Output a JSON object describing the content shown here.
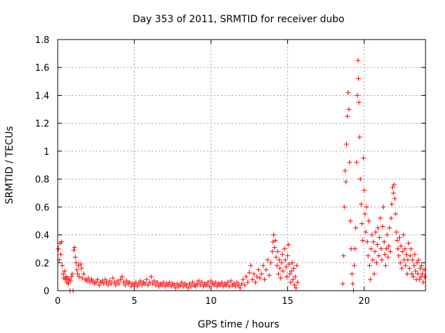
{
  "chart_data": {
    "type": "scatter",
    "title": "Day 353 of 2011, SRMTID for receiver dubo",
    "xlabel": "GPS time / hours",
    "ylabel": "SRMTID / TECUs",
    "xlim": [
      0,
      24
    ],
    "ylim": [
      0,
      1.8
    ],
    "x_ticks": [
      0,
      5,
      10,
      15,
      20
    ],
    "x_tick_labels": [
      "0",
      "5",
      "10",
      "15",
      "20"
    ],
    "y_ticks": [
      0,
      0.2,
      0.4,
      0.6,
      0.8,
      1,
      1.2,
      1.4,
      1.6,
      1.8
    ],
    "y_tick_labels": [
      "0",
      "0.2",
      "0.4",
      "0.6",
      "0.8",
      "1",
      "1.2",
      "1.4",
      "1.6",
      "1.8"
    ],
    "grid": true,
    "marker": "+",
    "color": "#ff0000",
    "series": [
      {
        "name": "SRMTID",
        "points": [
          [
            0.05,
            0.3
          ],
          [
            0.1,
            0.22
          ],
          [
            0.15,
            0.34
          ],
          [
            0.2,
            0.26
          ],
          [
            0.25,
            0.35
          ],
          [
            0.3,
            0.18
          ],
          [
            0.35,
            0.12
          ],
          [
            0.4,
            0.09
          ],
          [
            0.45,
            0.14
          ],
          [
            0.5,
            0.08
          ],
          [
            0.55,
            0.1
          ],
          [
            0.6,
            0.06
          ],
          [
            0.65,
            0.09
          ],
          [
            0.7,
            0.05
          ],
          [
            0.75,
            0.08
          ],
          [
            0.8,
            0.0
          ],
          [
            0.85,
            0.07
          ],
          [
            0.9,
            0.1
          ],
          [
            0.95,
            0.12
          ],
          [
            1.0,
            0.0
          ],
          [
            1.05,
            0.29
          ],
          [
            1.1,
            0.31
          ],
          [
            1.15,
            0.24
          ],
          [
            1.2,
            0.2
          ],
          [
            1.25,
            0.15
          ],
          [
            1.3,
            0.12
          ],
          [
            1.35,
            0.18
          ],
          [
            1.4,
            0.1
          ],
          [
            1.5,
            0.19
          ],
          [
            1.55,
            0.16
          ],
          [
            1.6,
            0.09
          ],
          [
            1.7,
            0.12
          ],
          [
            1.8,
            0.08
          ],
          [
            1.9,
            0.07
          ],
          [
            2.0,
            0.09
          ],
          [
            2.1,
            0.06
          ],
          [
            2.2,
            0.08
          ],
          [
            2.3,
            0.07
          ],
          [
            2.4,
            0.05
          ],
          [
            2.5,
            0.06
          ],
          [
            2.6,
            0.08
          ],
          [
            2.7,
            0.04
          ],
          [
            2.8,
            0.06
          ],
          [
            2.9,
            0.07
          ],
          [
            3.0,
            0.05
          ],
          [
            3.1,
            0.08
          ],
          [
            3.2,
            0.06
          ],
          [
            3.3,
            0.04
          ],
          [
            3.4,
            0.07
          ],
          [
            3.5,
            0.05
          ],
          [
            3.6,
            0.09
          ],
          [
            3.7,
            0.06
          ],
          [
            3.8,
            0.04
          ],
          [
            3.9,
            0.07
          ],
          [
            4.0,
            0.05
          ],
          [
            4.1,
            0.08
          ],
          [
            4.2,
            0.1
          ],
          [
            4.3,
            0.06
          ],
          [
            4.4,
            0.04
          ],
          [
            4.5,
            0.07
          ],
          [
            4.6,
            0.05
          ],
          [
            4.7,
            0.06
          ],
          [
            4.8,
            0.03
          ],
          [
            4.9,
            0.05
          ],
          [
            5.0,
            0.04
          ],
          [
            5.1,
            0.06
          ],
          [
            5.2,
            0.03
          ],
          [
            5.3,
            0.05
          ],
          [
            5.4,
            0.07
          ],
          [
            5.5,
            0.04
          ],
          [
            5.6,
            0.06
          ],
          [
            5.7,
            0.05
          ],
          [
            5.8,
            0.08
          ],
          [
            5.9,
            0.04
          ],
          [
            6.0,
            0.06
          ],
          [
            6.1,
            0.1
          ],
          [
            6.2,
            0.05
          ],
          [
            6.3,
            0.07
          ],
          [
            6.4,
            0.04
          ],
          [
            6.5,
            0.06
          ],
          [
            6.6,
            0.03
          ],
          [
            6.7,
            0.05
          ],
          [
            6.8,
            0.04
          ],
          [
            6.9,
            0.06
          ],
          [
            7.0,
            0.03
          ],
          [
            7.1,
            0.05
          ],
          [
            7.2,
            0.04
          ],
          [
            7.3,
            0.06
          ],
          [
            7.4,
            0.03
          ],
          [
            7.5,
            0.05
          ],
          [
            7.6,
            0.04
          ],
          [
            7.7,
            0.02
          ],
          [
            7.8,
            0.05
          ],
          [
            7.9,
            0.03
          ],
          [
            8.0,
            0.04
          ],
          [
            8.1,
            0.06
          ],
          [
            8.2,
            0.03
          ],
          [
            8.3,
            0.05
          ],
          [
            8.4,
            0.04
          ],
          [
            8.5,
            0.02
          ],
          [
            8.6,
            0.05
          ],
          [
            8.7,
            0.03
          ],
          [
            8.8,
            0.06
          ],
          [
            8.9,
            0.04
          ],
          [
            9.0,
            0.03
          ],
          [
            9.1,
            0.05
          ],
          [
            9.2,
            0.07
          ],
          [
            9.3,
            0.04
          ],
          [
            9.4,
            0.06
          ],
          [
            9.5,
            0.03
          ],
          [
            9.6,
            0.05
          ],
          [
            9.7,
            0.04
          ],
          [
            9.8,
            0.06
          ],
          [
            9.9,
            0.03
          ],
          [
            10.0,
            0.07
          ],
          [
            10.1,
            0.05
          ],
          [
            10.2,
            0.04
          ],
          [
            10.3,
            0.06
          ],
          [
            10.4,
            0.03
          ],
          [
            10.5,
            0.05
          ],
          [
            10.6,
            0.04
          ],
          [
            10.7,
            0.06
          ],
          [
            10.8,
            0.03
          ],
          [
            10.9,
            0.05
          ],
          [
            11.0,
            0.04
          ],
          [
            11.1,
            0.06
          ],
          [
            11.2,
            0.03
          ],
          [
            11.3,
            0.07
          ],
          [
            11.4,
            0.04
          ],
          [
            11.5,
            0.05
          ],
          [
            11.6,
            0.03
          ],
          [
            11.7,
            0.06
          ],
          [
            11.8,
            0.04
          ],
          [
            11.9,
            0.02
          ],
          [
            12.0,
            0.05
          ],
          [
            12.1,
            0.08
          ],
          [
            12.2,
            0.04
          ],
          [
            12.3,
            0.1
          ],
          [
            12.4,
            0.06
          ],
          [
            12.5,
            0.13
          ],
          [
            12.6,
            0.18
          ],
          [
            12.7,
            0.08
          ],
          [
            12.8,
            0.12
          ],
          [
            12.9,
            0.06
          ],
          [
            13.0,
            0.1
          ],
          [
            13.1,
            0.15
          ],
          [
            13.2,
            0.09
          ],
          [
            13.3,
            0.12
          ],
          [
            13.4,
            0.18
          ],
          [
            13.5,
            0.08
          ],
          [
            13.6,
            0.15
          ],
          [
            13.7,
            0.22
          ],
          [
            13.8,
            0.11
          ],
          [
            13.9,
            0.2
          ],
          [
            14.0,
            0.28
          ],
          [
            14.05,
            0.35
          ],
          [
            14.1,
            0.4
          ],
          [
            14.15,
            0.31
          ],
          [
            14.2,
            0.36
          ],
          [
            14.25,
            0.24
          ],
          [
            14.3,
            0.18
          ],
          [
            14.35,
            0.28
          ],
          [
            14.4,
            0.12
          ],
          [
            14.45,
            0.22
          ],
          [
            14.5,
            0.16
          ],
          [
            14.55,
            0.09
          ],
          [
            14.6,
            0.2
          ],
          [
            14.65,
            0.26
          ],
          [
            14.7,
            0.14
          ],
          [
            14.8,
            0.3
          ],
          [
            14.85,
            0.22
          ],
          [
            14.9,
            0.17
          ],
          [
            14.95,
            0.1
          ],
          [
            15.0,
            0.25
          ],
          [
            15.05,
            0.33
          ],
          [
            15.1,
            0.19
          ],
          [
            15.15,
            0.12
          ],
          [
            15.2,
            0.06
          ],
          [
            15.25,
            0.14
          ],
          [
            15.3,
            0.2
          ],
          [
            15.35,
            0.08
          ],
          [
            15.4,
            0.16
          ],
          [
            15.45,
            0.04
          ],
          [
            15.5,
            0.1
          ],
          [
            15.55,
            0.02
          ],
          [
            15.6,
            0.18
          ],
          [
            15.65,
            0.06
          ],
          [
            18.6,
            0.05
          ],
          [
            18.65,
            0.25
          ],
          [
            18.7,
            0.6
          ],
          [
            18.75,
            0.86
          ],
          [
            18.8,
            0.78
          ],
          [
            18.85,
            1.05
          ],
          [
            18.9,
            1.25
          ],
          [
            18.95,
            1.42
          ],
          [
            19.0,
            1.3
          ],
          [
            19.05,
            0.92
          ],
          [
            19.1,
            0.5
          ],
          [
            19.15,
            0.3
          ],
          [
            19.2,
            0.12
          ],
          [
            19.25,
            0.05
          ],
          [
            19.3,
            0.0
          ],
          [
            19.35,
            0.18
          ],
          [
            19.4,
            0.3
          ],
          [
            19.45,
            0.45
          ],
          [
            19.5,
            0.92
          ],
          [
            19.55,
            1.4
          ],
          [
            19.6,
            1.65
          ],
          [
            19.62,
            1.52
          ],
          [
            19.65,
            1.35
          ],
          [
            19.7,
            1.1
          ],
          [
            19.75,
            0.8
          ],
          [
            19.8,
            0.62
          ],
          [
            19.85,
            0.48
          ],
          [
            19.9,
            0.36
          ],
          [
            19.95,
            0.95
          ],
          [
            20.0,
            0.72
          ],
          [
            20.05,
            0.55
          ],
          [
            20.1,
            0.42
          ],
          [
            20.15,
            0.6
          ],
          [
            20.2,
            0.35
          ],
          [
            20.25,
            0.25
          ],
          [
            20.3,
            0.5
          ],
          [
            20.35,
            0.18
          ],
          [
            20.4,
            0.08
          ],
          [
            20.45,
            0.3
          ],
          [
            20.5,
            0.4
          ],
          [
            20.55,
            0.22
          ],
          [
            20.6,
            0.35
          ],
          [
            20.65,
            0.12
          ],
          [
            20.7,
            0.28
          ],
          [
            20.75,
            0.42
          ],
          [
            20.8,
            0.2
          ],
          [
            20.85,
            0.33
          ],
          [
            20.9,
            0.45
          ],
          [
            20.95,
            0.25
          ],
          [
            21.0,
            0.38
          ],
          [
            21.05,
            0.52
          ],
          [
            21.1,
            0.3
          ],
          [
            21.15,
            0.22
          ],
          [
            21.2,
            0.46
          ],
          [
            21.25,
            0.6
          ],
          [
            21.3,
            0.35
          ],
          [
            21.35,
            0.26
          ],
          [
            21.4,
            0.18
          ],
          [
            21.45,
            0.3
          ],
          [
            21.5,
            0.4
          ],
          [
            21.55,
            0.24
          ],
          [
            21.6,
            0.32
          ],
          [
            21.65,
            0.45
          ],
          [
            21.7,
            0.28
          ],
          [
            21.75,
            0.52
          ],
          [
            21.8,
            0.62
          ],
          [
            21.85,
            0.74
          ],
          [
            21.9,
            0.7
          ],
          [
            21.95,
            0.76
          ],
          [
            22.0,
            0.66
          ],
          [
            22.05,
            0.55
          ],
          [
            22.1,
            0.42
          ],
          [
            22.15,
            0.36
          ],
          [
            22.2,
            0.3
          ],
          [
            22.25,
            0.25
          ],
          [
            22.3,
            0.38
          ],
          [
            22.35,
            0.2
          ],
          [
            22.4,
            0.32
          ],
          [
            22.45,
            0.16
          ],
          [
            22.5,
            0.28
          ],
          [
            22.55,
            0.4
          ],
          [
            22.6,
            0.22
          ],
          [
            22.65,
            0.3
          ],
          [
            22.7,
            0.18
          ],
          [
            22.75,
            0.26
          ],
          [
            22.8,
            0.12
          ],
          [
            22.85,
            0.22
          ],
          [
            22.9,
            0.34
          ],
          [
            22.95,
            0.16
          ],
          [
            23.0,
            0.25
          ],
          [
            23.05,
            0.3
          ],
          [
            23.1,
            0.12
          ],
          [
            23.15,
            0.22
          ],
          [
            23.2,
            0.1
          ],
          [
            23.25,
            0.18
          ],
          [
            23.3,
            0.26
          ],
          [
            23.35,
            0.14
          ],
          [
            23.4,
            0.08
          ],
          [
            23.45,
            0.2
          ],
          [
            23.5,
            0.12
          ],
          [
            23.55,
            0.22
          ],
          [
            23.6,
            0.08
          ],
          [
            23.65,
            0.16
          ],
          [
            23.7,
            0.1
          ],
          [
            23.75,
            0.18
          ],
          [
            23.8,
            0.12
          ],
          [
            23.85,
            0.06
          ],
          [
            23.9,
            0.15
          ],
          [
            23.95,
            0.1
          ]
        ]
      }
    ]
  }
}
